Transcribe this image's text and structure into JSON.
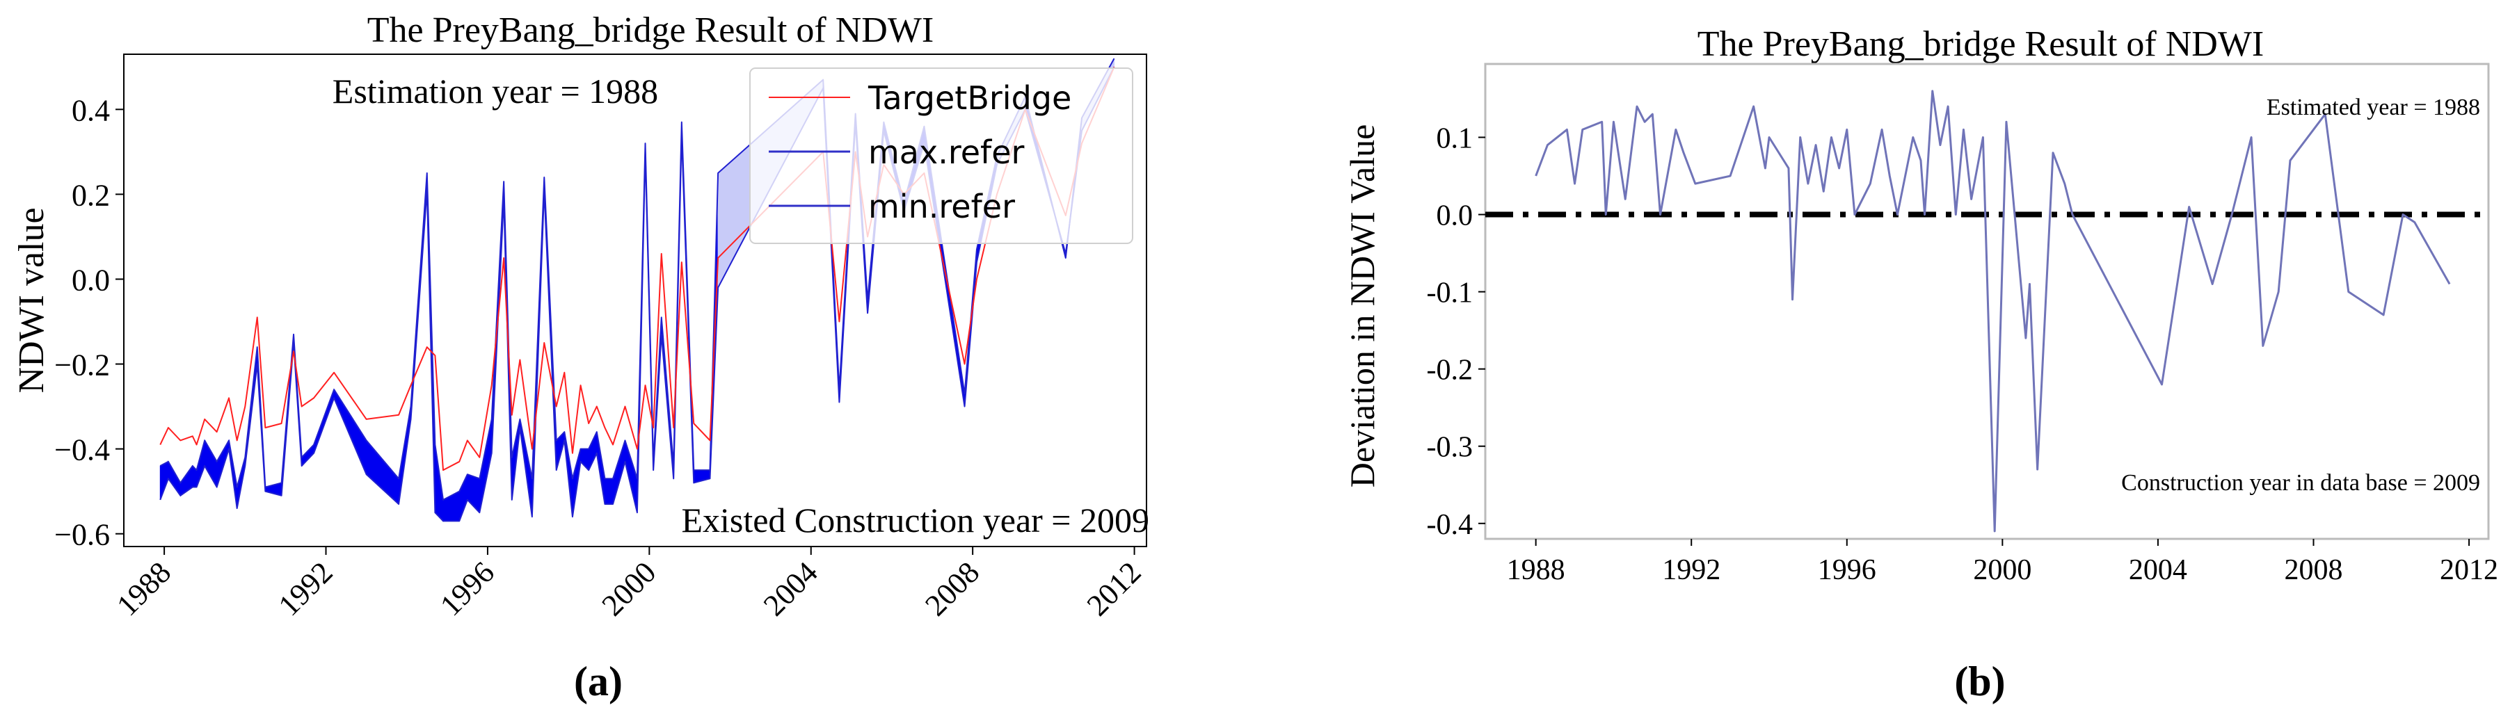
{
  "panels": {
    "a": {
      "caption": "(a)"
    },
    "b": {
      "caption": "(b)"
    }
  },
  "colors": {
    "target": "#ff2020",
    "band": "#0000f0",
    "legend_band": "#c8cbf8",
    "deviation": "#7074b8",
    "zero_line": "#000000"
  },
  "chart_data": [
    {
      "type": "line",
      "title": "The PreyBang_bridge Result of NDWI",
      "xlabel": "",
      "ylabel": "NDWI value",
      "xlim": [
        1987.0,
        2012.3
      ],
      "ylim": [
        -0.63,
        0.53
      ],
      "xticks": [
        1988,
        1992,
        1996,
        2000,
        2004,
        2008,
        2012
      ],
      "xtick_labels": [
        "1988",
        "1992",
        "1996",
        "2000",
        "2004",
        "2008",
        "2012"
      ],
      "yticks": [
        -0.6,
        -0.4,
        -0.2,
        0.0,
        0.2,
        0.4
      ],
      "ytick_labels": [
        "−0.6",
        "−0.4",
        "−0.2",
        "0.0",
        "0.2",
        "0.4"
      ],
      "legend": [
        "TargetBridge",
        "max.refer",
        "min.refer"
      ],
      "legend_position": "top-right",
      "annotations": [
        "Estimation year = 1988",
        "Existed Construction year = 2009"
      ],
      "x": [
        1987.9,
        1988.1,
        1988.4,
        1988.7,
        1988.8,
        1989.0,
        1989.3,
        1989.6,
        1989.8,
        1990.0,
        1990.3,
        1990.5,
        1990.9,
        1991.2,
        1991.4,
        1991.7,
        1992.2,
        1993.0,
        1993.8,
        1994.1,
        1994.5,
        1994.7,
        1994.9,
        1995.3,
        1995.5,
        1995.8,
        1996.1,
        1996.4,
        1996.6,
        1996.8,
        1997.1,
        1997.4,
        1997.7,
        1997.9,
        1998.1,
        1998.3,
        1998.5,
        1998.7,
        1998.9,
        1999.1,
        1999.4,
        1999.7,
        1999.9,
        2000.1,
        2000.3,
        2000.6,
        2000.8,
        2001.1,
        2001.5,
        2001.7,
        2004.3,
        2004.7,
        2005.1,
        2005.4,
        2005.8,
        2006.3,
        2006.8,
        2007.8,
        2008.1,
        2008.6,
        2009.3,
        2010.3,
        2010.7,
        2011.5
      ],
      "series": [
        {
          "name": "TargetBridge",
          "values": [
            -0.39,
            -0.35,
            -0.38,
            -0.37,
            -0.39,
            -0.33,
            -0.36,
            -0.28,
            -0.38,
            -0.3,
            -0.09,
            -0.35,
            -0.34,
            -0.17,
            -0.3,
            -0.28,
            -0.22,
            -0.33,
            -0.32,
            -0.25,
            -0.16,
            -0.18,
            -0.45,
            -0.43,
            -0.38,
            -0.42,
            -0.25,
            0.05,
            -0.32,
            -0.19,
            -0.4,
            -0.15,
            -0.3,
            -0.22,
            -0.41,
            -0.25,
            -0.34,
            -0.3,
            -0.35,
            -0.39,
            -0.3,
            -0.4,
            -0.25,
            -0.35,
            0.06,
            -0.35,
            0.04,
            -0.34,
            -0.38,
            0.05,
            0.3,
            -0.1,
            0.3,
            0.1,
            0.27,
            0.2,
            0.25,
            -0.2,
            0.0,
            0.2,
            0.4,
            0.15,
            0.32,
            0.5
          ]
        },
        {
          "name": "max.refer",
          "values": [
            -0.44,
            -0.43,
            -0.48,
            -0.44,
            -0.45,
            -0.38,
            -0.43,
            -0.38,
            -0.49,
            -0.42,
            -0.16,
            -0.49,
            -0.48,
            -0.13,
            -0.42,
            -0.39,
            -0.26,
            -0.38,
            -0.47,
            -0.3,
            0.25,
            -0.39,
            -0.52,
            -0.5,
            -0.46,
            -0.47,
            -0.33,
            0.23,
            -0.42,
            -0.33,
            -0.47,
            0.24,
            -0.38,
            -0.36,
            -0.47,
            -0.4,
            -0.4,
            -0.36,
            -0.47,
            -0.47,
            -0.38,
            -0.47,
            0.32,
            -0.43,
            -0.09,
            -0.44,
            0.37,
            -0.45,
            -0.45,
            0.25,
            0.47,
            -0.26,
            0.39,
            -0.05,
            0.37,
            0.18,
            0.36,
            -0.27,
            0.07,
            0.29,
            0.43,
            0.05,
            0.38,
            0.52
          ]
        },
        {
          "name": "min.refer",
          "values": [
            -0.52,
            -0.47,
            -0.51,
            -0.49,
            -0.49,
            -0.44,
            -0.49,
            -0.4,
            -0.54,
            -0.44,
            -0.2,
            -0.5,
            -0.51,
            -0.15,
            -0.44,
            -0.41,
            -0.28,
            -0.46,
            -0.53,
            -0.33,
            0.21,
            -0.55,
            -0.57,
            -0.57,
            -0.52,
            -0.55,
            -0.41,
            0.19,
            -0.52,
            -0.35,
            -0.56,
            0.21,
            -0.45,
            -0.38,
            -0.56,
            -0.43,
            -0.45,
            -0.41,
            -0.53,
            -0.53,
            -0.43,
            -0.55,
            0.3,
            -0.45,
            -0.13,
            -0.47,
            0.34,
            -0.48,
            -0.47,
            -0.02,
            0.45,
            -0.29,
            0.37,
            -0.08,
            0.35,
            0.16,
            0.32,
            -0.3,
            0.04,
            0.27,
            0.4,
            0.06,
            0.35,
            0.5
          ]
        }
      ]
    },
    {
      "type": "line",
      "title": "The PreyBang_bridge Result of NDWI",
      "xlabel": "",
      "ylabel": "Deviation in NDWI Value",
      "xlim": [
        1986.7,
        2012.5
      ],
      "ylim": [
        -0.42,
        0.195
      ],
      "xticks": [
        1988,
        1992,
        1996,
        2000,
        2004,
        2008,
        2012
      ],
      "xtick_labels": [
        "1988",
        "1992",
        "1996",
        "2000",
        "2004",
        "2008",
        "2012"
      ],
      "yticks": [
        -0.4,
        -0.3,
        -0.2,
        -0.1,
        0.0,
        0.1
      ],
      "ytick_labels": [
        "-0.4",
        "-0.3",
        "-0.2",
        "-0.1",
        "0.0",
        "0.1"
      ],
      "annotations": [
        "Estimated year = 1988",
        "Construction year in data base = 2009"
      ],
      "reference_line": {
        "y": 0.0,
        "style": "dash-dot"
      },
      "x": [
        1988.0,
        1988.3,
        1988.8,
        1989.0,
        1989.2,
        1989.7,
        1989.8,
        1990.0,
        1990.3,
        1990.6,
        1990.8,
        1991.0,
        1991.2,
        1991.6,
        1991.8,
        1992.1,
        1993.0,
        1993.6,
        1993.9,
        1994.0,
        1994.5,
        1994.6,
        1994.8,
        1995.0,
        1995.2,
        1995.4,
        1995.6,
        1995.8,
        1996.0,
        1996.2,
        1996.6,
        1996.9,
        1997.1,
        1997.3,
        1997.5,
        1997.7,
        1997.9,
        1998.0,
        1998.2,
        1998.4,
        1998.6,
        1998.8,
        1999.0,
        1999.2,
        1999.5,
        1999.8,
        2000.1,
        2000.6,
        2000.7,
        2000.9,
        2001.3,
        2001.6,
        2001.8,
        2004.1,
        2004.8,
        2005.4,
        2005.9,
        2006.4,
        2006.7,
        2007.1,
        2007.4,
        2008.3,
        2008.9,
        2009.8,
        2010.3,
        2010.6,
        2011.5
      ],
      "values": [
        0.05,
        0.09,
        0.11,
        0.04,
        0.11,
        0.12,
        0.0,
        0.12,
        0.02,
        0.14,
        0.12,
        0.13,
        0.0,
        0.11,
        0.08,
        0.04,
        0.05,
        0.14,
        0.06,
        0.1,
        0.06,
        -0.11,
        0.1,
        0.04,
        0.09,
        0.03,
        0.1,
        0.06,
        0.11,
        0.0,
        0.04,
        0.11,
        0.05,
        0.0,
        0.05,
        0.1,
        0.07,
        0.0,
        0.16,
        0.09,
        0.14,
        0.0,
        0.11,
        0.02,
        0.1,
        -0.41,
        0.12,
        -0.16,
        -0.09,
        -0.33,
        0.08,
        0.04,
        0.0,
        -0.22,
        0.01,
        -0.09,
        0.0,
        0.1,
        -0.17,
        -0.1,
        0.07,
        0.13,
        -0.1,
        -0.13,
        0.0,
        -0.01,
        -0.09
      ]
    }
  ]
}
